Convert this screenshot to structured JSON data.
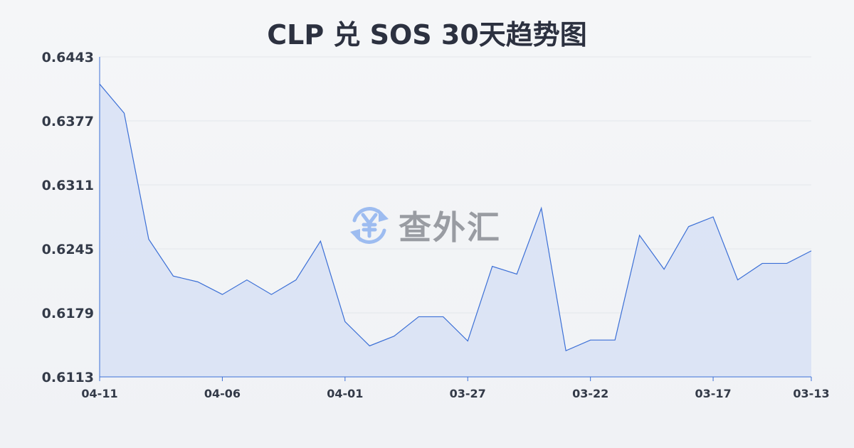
{
  "chart_data": {
    "type": "area",
    "title": "CLP 兑 SOS 30天趋势图",
    "xlabel": "",
    "ylabel": "",
    "ylim": [
      0.6113,
      0.6443
    ],
    "yticks": [
      "0.6113",
      "0.6179",
      "0.6245",
      "0.6311",
      "0.6377",
      "0.6443"
    ],
    "xtick_labels": [
      "04-11",
      "04-06",
      "04-01",
      "03-27",
      "03-22",
      "03-17",
      "03-13"
    ],
    "xtick_indices": [
      0,
      5,
      10,
      15,
      20,
      25,
      29
    ],
    "grid": true,
    "line_color": "#3b6fd6",
    "fill_color": "#d9e2f5",
    "values": [
      0.6415,
      0.6385,
      0.6255,
      0.6217,
      0.6211,
      0.6198,
      0.6213,
      0.6198,
      0.6213,
      0.6253,
      0.617,
      0.6145,
      0.6155,
      0.6175,
      0.6175,
      0.615,
      0.6227,
      0.6219,
      0.6287,
      0.614,
      0.6151,
      0.6151,
      0.6259,
      0.6224,
      0.6268,
      0.6278,
      0.6213,
      0.623,
      0.623,
      0.6243
    ]
  },
  "watermark": {
    "text": "查外汇",
    "icon": "yen-exchange-icon"
  }
}
